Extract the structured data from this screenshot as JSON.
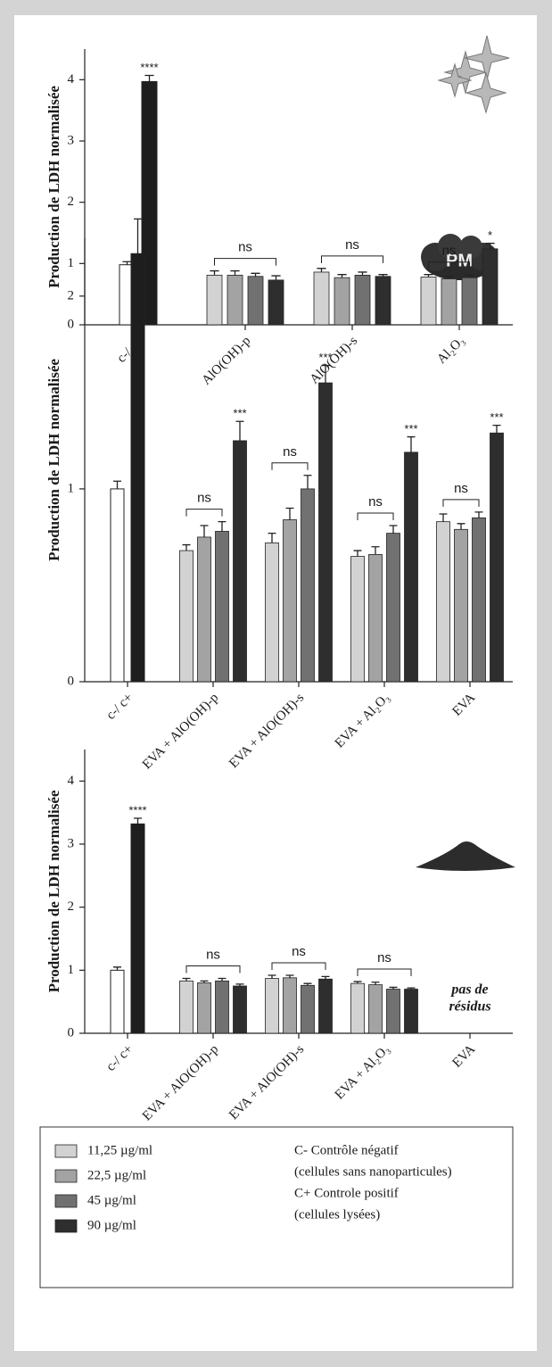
{
  "chart_data": [
    {
      "type": "bar",
      "y_label": "Production de LDH normalisée",
      "categories": [
        "c-/ c+",
        "AlO(OH)-p",
        "AlO(OH)-s",
        "Al₂O₃"
      ],
      "control_values": [
        0.98,
        3.97
      ],
      "control_errors": [
        0.05,
        0.1
      ],
      "control_colors": [
        "#ffffff",
        "#1e1e1e"
      ],
      "control_marks": [
        null,
        "****"
      ],
      "series": [
        {
          "color": "#d2d2d2",
          "values": [
            null,
            0.81,
            0.86,
            0.78
          ],
          "errors": [
            null,
            0.07,
            0.06,
            0.04
          ],
          "marks": [
            null,
            null,
            null,
            null
          ]
        },
        {
          "color": "#a3a3a3",
          "values": [
            null,
            0.81,
            0.77,
            0.75
          ],
          "errors": [
            null,
            0.07,
            0.05,
            0.04
          ],
          "marks": [
            null,
            null,
            null,
            null
          ]
        },
        {
          "color": "#717171",
          "values": [
            null,
            0.79,
            0.81,
            0.77
          ],
          "errors": [
            null,
            0.05,
            0.05,
            0.04
          ],
          "marks": [
            null,
            null,
            null,
            null
          ]
        },
        {
          "color": "#2e2e2e",
          "values": [
            null,
            0.73,
            0.79,
            1.24
          ],
          "errors": [
            null,
            0.07,
            0.03,
            0.09
          ],
          "marks": [
            null,
            null,
            null,
            "*"
          ]
        }
      ],
      "brackets": [
        null,
        {
          "label": "ns",
          "span": 4
        },
        {
          "label": "ns",
          "span": 4
        },
        {
          "label": "ns",
          "span": 3
        }
      ],
      "ylim": [
        0,
        4.5
      ],
      "yticks": [
        0,
        1,
        2,
        3,
        4
      ]
    },
    {
      "type": "bar",
      "y_label": "Production de LDH normalisée",
      "badge": "PM",
      "categories": [
        "c-/ c+",
        "EVA + AlO(OH)-p",
        "EVA + AlO(OH)-s",
        "EVA + Al₂O₃",
        "EVA"
      ],
      "control_values": [
        1.0,
        2.22
      ],
      "control_errors": [
        0.04,
        0.18
      ],
      "control_colors": [
        "#ffffff",
        "#1e1e1e"
      ],
      "control_marks": [
        null,
        null
      ],
      "series": [
        {
          "color": "#d2d2d2",
          "values": [
            null,
            0.68,
            0.72,
            0.65,
            0.83
          ],
          "errors": [
            null,
            0.03,
            0.05,
            0.03,
            0.04
          ],
          "marks": [
            null,
            null,
            null,
            null,
            null
          ]
        },
        {
          "color": "#a3a3a3",
          "values": [
            null,
            0.75,
            0.84,
            0.66,
            0.79
          ],
          "errors": [
            null,
            0.06,
            0.06,
            0.04,
            0.03
          ],
          "marks": [
            null,
            null,
            null,
            null,
            null
          ]
        },
        {
          "color": "#717171",
          "values": [
            null,
            0.78,
            1.0,
            0.77,
            0.85
          ],
          "errors": [
            null,
            0.05,
            0.07,
            0.04,
            0.03
          ],
          "marks": [
            null,
            null,
            null,
            null,
            null
          ]
        },
        {
          "color": "#2e2e2e",
          "values": [
            null,
            1.25,
            1.55,
            1.19,
            1.29
          ],
          "errors": [
            null,
            0.1,
            0.09,
            0.08,
            0.04
          ],
          "marks": [
            null,
            "***",
            "***",
            "***",
            "***"
          ]
        }
      ],
      "brackets": [
        null,
        {
          "label": "ns",
          "span": 3
        },
        {
          "label": "ns",
          "span": 3
        },
        {
          "label": "ns",
          "span": 3
        },
        {
          "label": "ns",
          "span": 3
        }
      ],
      "ylim": [
        0,
        2.3
      ],
      "yticks": [
        0,
        1,
        2
      ]
    },
    {
      "type": "bar",
      "y_label": "Production de LDH normalisée",
      "note": [
        "pas de",
        "résidus"
      ],
      "categories": [
        "c-/ c+",
        "EVA + AlO(OH)-p",
        "EVA + AlO(OH)-s",
        "EVA + Al₂O₃",
        "EVA"
      ],
      "control_values": [
        1.0,
        3.32
      ],
      "control_errors": [
        0.05,
        0.09
      ],
      "control_colors": [
        "#ffffff",
        "#1e1e1e"
      ],
      "control_marks": [
        null,
        "****"
      ],
      "series": [
        {
          "color": "#d2d2d2",
          "values": [
            null,
            0.83,
            0.87,
            0.79,
            null
          ],
          "errors": [
            null,
            0.04,
            0.05,
            0.03,
            null
          ],
          "marks": [
            null,
            null,
            null,
            null,
            null
          ]
        },
        {
          "color": "#a3a3a3",
          "values": [
            null,
            0.8,
            0.88,
            0.77,
            null
          ],
          "errors": [
            null,
            0.03,
            0.04,
            0.04,
            null
          ],
          "marks": [
            null,
            null,
            null,
            null,
            null
          ]
        },
        {
          "color": "#717171",
          "values": [
            null,
            0.83,
            0.76,
            0.7,
            null
          ],
          "errors": [
            null,
            0.04,
            0.03,
            0.03,
            null
          ],
          "marks": [
            null,
            null,
            null,
            null,
            null
          ]
        },
        {
          "color": "#2e2e2e",
          "values": [
            null,
            0.75,
            0.86,
            0.7,
            null
          ],
          "errors": [
            null,
            0.03,
            0.04,
            0.02,
            null
          ],
          "marks": [
            null,
            null,
            null,
            null,
            null
          ]
        }
      ],
      "brackets": [
        null,
        {
          "label": "ns",
          "span": 4
        },
        {
          "label": "ns",
          "span": 4
        },
        {
          "label": "ns",
          "span": 4
        },
        null
      ],
      "ylim": [
        0,
        4.5
      ],
      "yticks": [
        0,
        1,
        2,
        3,
        4
      ]
    }
  ],
  "legend": {
    "items": [
      {
        "label": "11,25 µg/ml",
        "color": "#d2d2d2"
      },
      {
        "label": "22,5 µg/ml",
        "color": "#a3a3a3"
      },
      {
        "label": "45 µg/ml",
        "color": "#717171"
      },
      {
        "label": "90 µg/ml",
        "color": "#2e2e2e"
      }
    ],
    "notes": [
      "C- Contrôle négatif",
      "(cellules sans nanoparticules)",
      "C+ Controle positif",
      "(cellules lysées)"
    ]
  }
}
